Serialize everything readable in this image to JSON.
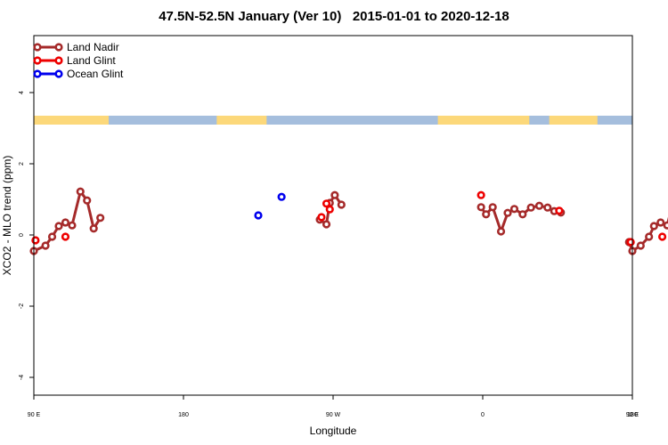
{
  "chart_data": {
    "type": "line",
    "title": "47.5N-52.5N January (Ver 10)   2015-01-01 to 2020-12-18",
    "xlabel": "Longitude",
    "ylabel": "XCO2 - MLO trend (ppm)",
    "xlim": [
      90,
      450
    ],
    "ylim": [
      -4.5,
      5.6
    ],
    "x_ticks": [
      {
        "value": 90,
        "label": "90 E"
      },
      {
        "value": 180,
        "label": "180"
      },
      {
        "value": 270,
        "label": "90 W"
      },
      {
        "value": 360,
        "label": "0"
      },
      {
        "value": 450,
        "label": "90 E"
      },
      {
        "value": 540,
        "label": "180"
      }
    ],
    "y_ticks": [
      {
        "value": -4,
        "label": "-4"
      },
      {
        "value": -2,
        "label": "-2"
      },
      {
        "value": 0,
        "label": "0"
      },
      {
        "value": 2,
        "label": "2"
      },
      {
        "value": 4,
        "label": "4"
      }
    ],
    "grid": false,
    "legend_position": "top-left",
    "landmask_band": {
      "y_range": [
        3.1,
        3.35
      ],
      "land_color": "#fcd87a",
      "ocean_color": "#a5bedd",
      "land_segments": [
        [
          90,
          135
        ],
        [
          200,
          230
        ],
        [
          333,
          388
        ],
        [
          400,
          429
        ]
      ]
    },
    "series": [
      {
        "name": "Land Nadir",
        "color": "#a52a2a",
        "connect": true,
        "segments": [
          [
            [
              90,
              -0.45
            ],
            [
              97,
              -0.3
            ],
            [
              101,
              -0.05
            ],
            [
              105,
              0.25
            ],
            [
              109,
              0.35
            ],
            [
              113,
              0.27
            ],
            [
              118,
              1.22
            ],
            [
              122,
              0.97
            ],
            [
              126,
              0.18
            ],
            [
              130,
              0.48
            ]
          ],
          [
            [
              262,
              0.43
            ],
            [
              266,
              0.3
            ],
            [
              268,
              0.9
            ],
            [
              271,
              1.12
            ],
            [
              275,
              0.85
            ]
          ],
          [
            [
              359,
              0.78
            ],
            [
              362,
              0.58
            ],
            [
              366,
              0.78
            ],
            [
              371,
              0.1
            ],
            [
              375,
              0.62
            ],
            [
              379,
              0.73
            ],
            [
              384,
              0.58
            ],
            [
              389,
              0.77
            ],
            [
              394,
              0.82
            ],
            [
              399,
              0.77
            ],
            [
              403,
              0.67
            ],
            [
              407,
              0.63
            ]
          ],
          [
            [
              448,
              -0.2
            ],
            [
              450,
              -0.45
            ],
            [
              455,
              -0.3
            ],
            [
              460,
              -0.05
            ],
            [
              463,
              0.25
            ],
            [
              467,
              0.35
            ],
            [
              471,
              0.27
            ],
            [
              476,
              1.22
            ],
            [
              480,
              0.97
            ],
            [
              484,
              0.18
            ],
            [
              489,
              0.48
            ]
          ]
        ]
      },
      {
        "name": "Land Glint",
        "color": "#ee0000",
        "connect": false,
        "points": [
          [
            91,
            -0.15
          ],
          [
            109,
            -0.05
          ],
          [
            263,
            0.5
          ],
          [
            266,
            0.88
          ],
          [
            268,
            0.72
          ],
          [
            359,
            1.12
          ],
          [
            406,
            0.68
          ],
          [
            449,
            -0.2
          ],
          [
            468,
            -0.05
          ]
        ]
      },
      {
        "name": "Ocean Glint",
        "color": "#0000ee",
        "connect": false,
        "points": [
          [
            225,
            0.55
          ],
          [
            239,
            1.07
          ]
        ]
      }
    ]
  }
}
